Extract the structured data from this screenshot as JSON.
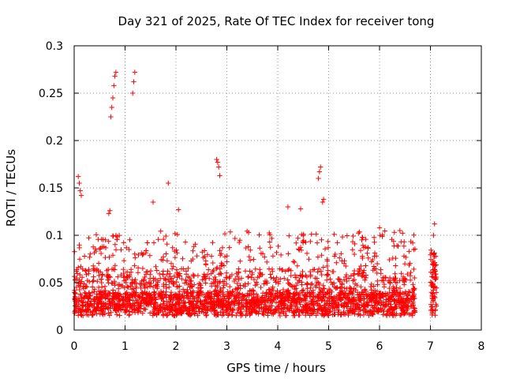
{
  "chart_data": {
    "type": "scatter",
    "title": "Day 321 of 2025, Rate Of TEC Index for receiver tong",
    "xlabel": "GPS time / hours",
    "ylabel": "ROTI / TECUs",
    "xlim": [
      0,
      8
    ],
    "ylim": [
      0,
      0.3
    ],
    "xticks": [
      0,
      1,
      2,
      3,
      4,
      5,
      6,
      7,
      8
    ],
    "xtick_labels": [
      "0",
      "1",
      "2",
      "3",
      "4",
      "5",
      "6",
      "7",
      "8"
    ],
    "yticks": [
      0,
      0.05,
      0.1,
      0.15,
      0.2,
      0.25,
      0.3
    ],
    "ytick_labels": [
      "0",
      "0.05",
      "0.1",
      "0.15",
      "0.2",
      "0.25",
      "0.3"
    ],
    "grid": true,
    "marker": "+",
    "series_color": "#ff0000",
    "data_extent_hours": [
      0,
      6.7
    ],
    "late_segment_hours": [
      7.0,
      7.12
    ],
    "highlight_points": [
      {
        "x": 0.08,
        "y": 0.162
      },
      {
        "x": 0.1,
        "y": 0.155
      },
      {
        "x": 0.12,
        "y": 0.147
      },
      {
        "x": 0.14,
        "y": 0.142
      },
      {
        "x": 0.72,
        "y": 0.225
      },
      {
        "x": 0.74,
        "y": 0.235
      },
      {
        "x": 0.76,
        "y": 0.245
      },
      {
        "x": 0.78,
        "y": 0.258
      },
      {
        "x": 0.8,
        "y": 0.268
      },
      {
        "x": 0.82,
        "y": 0.272
      },
      {
        "x": 1.15,
        "y": 0.25
      },
      {
        "x": 1.17,
        "y": 0.262
      },
      {
        "x": 1.19,
        "y": 0.272
      },
      {
        "x": 1.85,
        "y": 0.155
      },
      {
        "x": 2.8,
        "y": 0.18
      },
      {
        "x": 2.82,
        "y": 0.177
      },
      {
        "x": 2.84,
        "y": 0.172
      },
      {
        "x": 2.86,
        "y": 0.163
      },
      {
        "x": 4.8,
        "y": 0.16
      },
      {
        "x": 4.82,
        "y": 0.167
      },
      {
        "x": 4.84,
        "y": 0.172
      },
      {
        "x": 4.88,
        "y": 0.135
      },
      {
        "x": 4.9,
        "y": 0.138
      },
      {
        "x": 4.2,
        "y": 0.13
      },
      {
        "x": 4.45,
        "y": 0.128
      },
      {
        "x": 1.55,
        "y": 0.135
      },
      {
        "x": 2.05,
        "y": 0.127
      },
      {
        "x": 0.68,
        "y": 0.123
      },
      {
        "x": 0.7,
        "y": 0.126
      },
      {
        "x": 6.0,
        "y": 0.108
      },
      {
        "x": 6.4,
        "y": 0.105
      },
      {
        "x": 7.08,
        "y": 0.112
      },
      {
        "x": 7.06,
        "y": 0.1
      }
    ]
  }
}
